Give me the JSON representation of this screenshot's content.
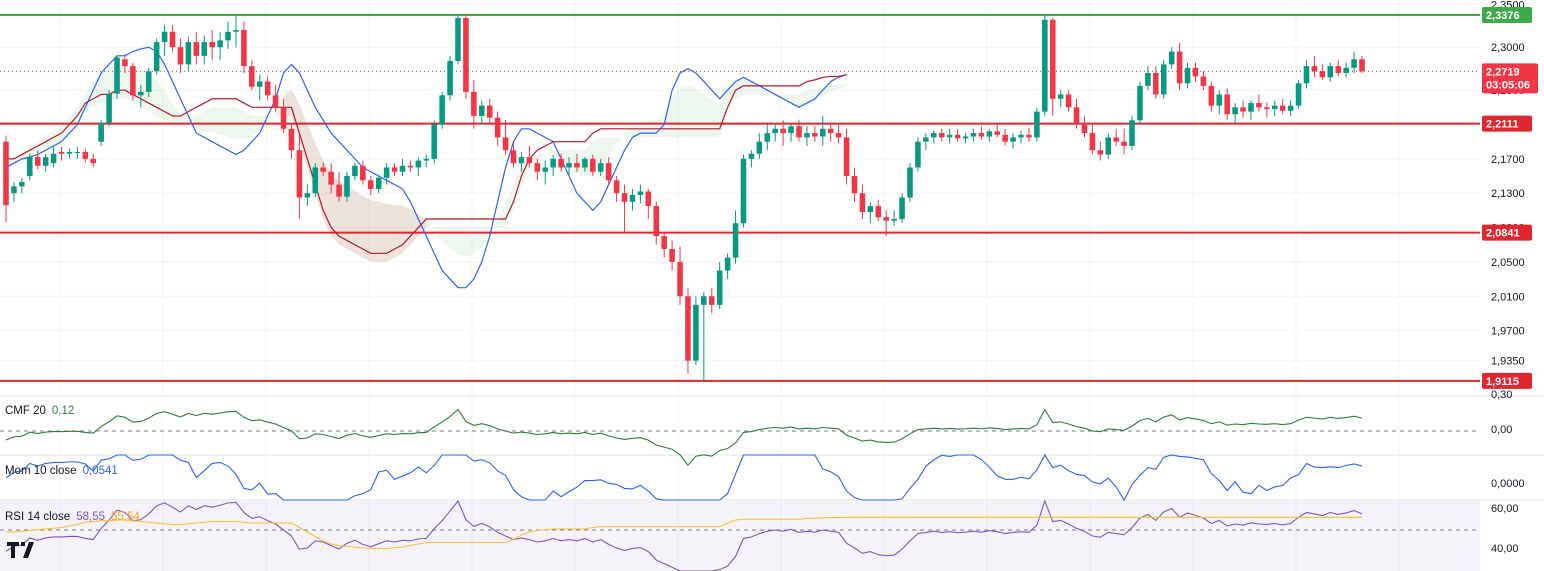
{
  "colors": {
    "up": "#089981",
    "down": "#f23645",
    "tenkan": "#2962ff",
    "kijun": "#b2182b",
    "level_red": "#e0262f",
    "level_green": "#3ea84a",
    "cmf": "#2e7d32",
    "mom": "#2962ff",
    "rsi": "#7e57c2",
    "rsi_ma": "#fbc02d",
    "cloud_green": "rgba(76,175,80,0.10)",
    "cloud_red": "rgba(242,54,69,0.10)"
  },
  "price_axis": {
    "ticks": [
      "2,3500",
      "2,3000",
      "2,2500",
      "2,2100",
      "2,1700",
      "2,1300",
      "2,0900",
      "2,0500",
      "2,0100",
      "1,9700",
      "1,9350"
    ],
    "tick_values": [
      2.35,
      2.3,
      2.25,
      2.21,
      2.17,
      2.13,
      2.09,
      2.05,
      2.01,
      1.97,
      1.935
    ]
  },
  "levels": [
    {
      "label": "2,3376",
      "value": 2.3376,
      "color": "green"
    },
    {
      "label": "2,2111",
      "value": 2.2111,
      "color": "red"
    },
    {
      "label": "2,0841",
      "value": 2.0841,
      "color": "red"
    },
    {
      "label": "1,9115",
      "value": 1.9115,
      "color": "red"
    }
  ],
  "current_price": {
    "label": "2,2719",
    "countdown": "03:05:06",
    "value": 2.2719
  },
  "cmf": {
    "title": "CMF 20",
    "value": "0,12",
    "axis_ticks": [
      "0,30",
      "0,00"
    ]
  },
  "mom": {
    "title": "Mom 10 close",
    "value": "0,0541",
    "axis_ticks": [
      "0,0000"
    ]
  },
  "rsi": {
    "title": "RSI 14 close",
    "value": "58,55",
    "ma_value": "55,54",
    "axis_ticks": [
      "60,00",
      "40,00"
    ]
  },
  "logo": "TV",
  "chart_data": {
    "type": "candlestick",
    "candles_ohlc": [
      [
        2.19,
        2.197,
        2.096,
        2.116
      ],
      [
        2.13,
        2.143,
        2.12,
        2.138
      ],
      [
        2.138,
        2.148,
        2.13,
        2.143
      ],
      [
        2.15,
        2.176,
        2.145,
        2.172
      ],
      [
        2.172,
        2.18,
        2.158,
        2.162
      ],
      [
        2.162,
        2.176,
        2.155,
        2.172
      ],
      [
        2.165,
        2.185,
        2.16,
        2.176
      ],
      [
        2.178,
        2.184,
        2.168,
        2.176
      ],
      [
        2.176,
        2.182,
        2.17,
        2.178
      ],
      [
        2.178,
        2.184,
        2.17,
        2.178
      ],
      [
        2.178,
        2.182,
        2.166,
        2.17
      ],
      [
        2.17,
        2.176,
        2.16,
        2.165
      ],
      [
        2.19,
        2.215,
        2.185,
        2.212
      ],
      [
        2.212,
        2.25,
        2.208,
        2.246
      ],
      [
        2.246,
        2.29,
        2.24,
        2.288
      ],
      [
        2.286,
        2.292,
        2.27,
        2.278
      ],
      [
        2.278,
        2.282,
        2.238,
        2.244
      ],
      [
        2.244,
        2.256,
        2.23,
        2.248
      ],
      [
        2.248,
        2.276,
        2.242,
        2.272
      ],
      [
        2.272,
        2.31,
        2.268,
        2.306
      ],
      [
        2.306,
        2.326,
        2.29,
        2.318
      ],
      [
        2.318,
        2.326,
        2.295,
        2.3
      ],
      [
        2.3,
        2.31,
        2.27,
        2.28
      ],
      [
        2.28,
        2.312,
        2.272,
        2.306
      ],
      [
        2.306,
        2.318,
        2.28,
        2.29
      ],
      [
        2.29,
        2.314,
        2.28,
        2.306
      ],
      [
        2.306,
        2.32,
        2.285,
        2.3
      ],
      [
        2.3,
        2.318,
        2.285,
        2.308
      ],
      [
        2.308,
        2.33,
        2.298,
        2.318
      ],
      [
        2.318,
        2.338,
        2.3,
        2.32
      ],
      [
        2.32,
        2.33,
        2.27,
        2.278
      ],
      [
        2.278,
        2.285,
        2.25,
        2.254
      ],
      [
        2.254,
        2.268,
        2.238,
        2.26
      ],
      [
        2.26,
        2.266,
        2.238,
        2.244
      ],
      [
        2.244,
        2.256,
        2.225,
        2.23
      ],
      [
        2.23,
        2.24,
        2.2,
        2.205
      ],
      [
        2.205,
        2.21,
        2.17,
        2.18
      ],
      [
        2.18,
        2.2,
        2.1,
        2.125
      ],
      [
        2.125,
        2.14,
        2.115,
        2.13
      ],
      [
        2.13,
        2.165,
        2.125,
        2.16
      ],
      [
        2.16,
        2.166,
        2.15,
        2.155
      ],
      [
        2.155,
        2.165,
        2.13,
        2.14
      ],
      [
        2.14,
        2.155,
        2.12,
        2.126
      ],
      [
        2.126,
        2.155,
        2.12,
        2.15
      ],
      [
        2.15,
        2.166,
        2.145,
        2.162
      ],
      [
        2.162,
        2.168,
        2.14,
        2.145
      ],
      [
        2.145,
        2.15,
        2.128,
        2.135
      ],
      [
        2.135,
        2.15,
        2.13,
        2.148
      ],
      [
        2.148,
        2.165,
        2.14,
        2.16
      ],
      [
        2.16,
        2.165,
        2.15,
        2.155
      ],
      [
        2.155,
        2.17,
        2.15,
        2.162
      ],
      [
        2.162,
        2.168,
        2.155,
        2.16
      ],
      [
        2.16,
        2.172,
        2.15,
        2.168
      ],
      [
        2.168,
        2.175,
        2.16,
        2.17
      ],
      [
        2.17,
        2.215,
        2.165,
        2.21
      ],
      [
        2.21,
        2.248,
        2.205,
        2.244
      ],
      [
        2.244,
        2.29,
        2.238,
        2.284
      ],
      [
        2.284,
        2.338,
        2.28,
        2.334
      ],
      [
        2.334,
        2.338,
        2.24,
        2.248
      ],
      [
        2.248,
        2.262,
        2.205,
        2.22
      ],
      [
        2.22,
        2.238,
        2.21,
        2.232
      ],
      [
        2.232,
        2.24,
        2.212,
        2.218
      ],
      [
        2.218,
        2.225,
        2.185,
        2.195
      ],
      [
        2.195,
        2.215,
        2.175,
        2.18
      ],
      [
        2.18,
        2.19,
        2.16,
        2.165
      ],
      [
        2.165,
        2.178,
        2.155,
        2.172
      ],
      [
        2.172,
        2.185,
        2.16,
        2.165
      ],
      [
        2.165,
        2.17,
        2.145,
        2.155
      ],
      [
        2.155,
        2.168,
        2.14,
        2.16
      ],
      [
        2.16,
        2.175,
        2.15,
        2.17
      ],
      [
        2.17,
        2.176,
        2.155,
        2.16
      ],
      [
        2.16,
        2.172,
        2.15,
        2.165
      ],
      [
        2.165,
        2.176,
        2.155,
        2.16
      ],
      [
        2.16,
        2.172,
        2.155,
        2.17
      ],
      [
        2.17,
        2.175,
        2.15,
        2.155
      ],
      [
        2.155,
        2.17,
        2.15,
        2.165
      ],
      [
        2.165,
        2.172,
        2.14,
        2.145
      ],
      [
        2.145,
        2.15,
        2.12,
        2.13
      ],
      [
        2.13,
        2.14,
        2.085,
        2.12
      ],
      [
        2.12,
        2.135,
        2.11,
        2.128
      ],
      [
        2.128,
        2.14,
        2.118,
        2.132
      ],
      [
        2.132,
        2.135,
        2.1,
        2.115
      ],
      [
        2.115,
        2.12,
        2.07,
        2.08
      ],
      [
        2.08,
        2.085,
        2.055,
        2.065
      ],
      [
        2.065,
        2.075,
        2.04,
        2.05
      ],
      [
        2.05,
        2.068,
        2.0,
        2.01
      ],
      [
        2.01,
        2.02,
        1.92,
        1.935
      ],
      [
        1.935,
        2.01,
        1.93,
        2.0
      ],
      [
        2.0,
        2.015,
        1.91,
        2.01
      ],
      [
        2.01,
        2.02,
        1.99,
        2.0
      ],
      [
        2.0,
        2.05,
        1.995,
        2.04
      ],
      [
        2.04,
        2.06,
        2.03,
        2.055
      ],
      [
        2.055,
        2.11,
        2.048,
        2.095
      ],
      [
        2.095,
        2.175,
        2.09,
        2.17
      ],
      [
        2.17,
        2.18,
        2.16,
        2.176
      ],
      [
        2.176,
        2.2,
        2.17,
        2.19
      ],
      [
        2.19,
        2.21,
        2.18,
        2.2
      ],
      [
        2.2,
        2.212,
        2.19,
        2.205
      ],
      [
        2.205,
        2.215,
        2.185,
        2.2
      ],
      [
        2.2,
        2.212,
        2.19,
        2.208
      ],
      [
        2.208,
        2.215,
        2.19,
        2.195
      ],
      [
        2.195,
        2.208,
        2.185,
        2.2
      ],
      [
        2.2,
        2.208,
        2.19,
        2.196
      ],
      [
        2.196,
        2.22,
        2.185,
        2.205
      ],
      [
        2.205,
        2.21,
        2.19,
        2.2
      ],
      [
        2.2,
        2.212,
        2.188,
        2.195
      ],
      [
        2.195,
        2.205,
        2.14,
        2.15
      ],
      [
        2.15,
        2.16,
        2.12,
        2.13
      ],
      [
        2.13,
        2.14,
        2.1,
        2.108
      ],
      [
        2.108,
        2.12,
        2.095,
        2.115
      ],
      [
        2.115,
        2.122,
        2.098,
        2.102
      ],
      [
        2.102,
        2.11,
        2.08,
        2.098
      ],
      [
        2.098,
        2.11,
        2.092,
        2.1
      ],
      [
        2.1,
        2.13,
        2.095,
        2.125
      ],
      [
        2.125,
        2.165,
        2.12,
        2.16
      ],
      [
        2.16,
        2.195,
        2.155,
        2.19
      ],
      [
        2.19,
        2.2,
        2.18,
        2.195
      ],
      [
        2.195,
        2.203,
        2.188,
        2.2
      ],
      [
        2.2,
        2.205,
        2.19,
        2.195
      ],
      [
        2.195,
        2.205,
        2.188,
        2.198
      ],
      [
        2.198,
        2.205,
        2.19,
        2.194
      ],
      [
        2.194,
        2.2,
        2.188,
        2.196
      ],
      [
        2.196,
        2.205,
        2.19,
        2.2
      ],
      [
        2.2,
        2.208,
        2.192,
        2.196
      ],
      [
        2.196,
        2.205,
        2.19,
        2.202
      ],
      [
        2.202,
        2.21,
        2.195,
        2.198
      ],
      [
        2.198,
        2.205,
        2.185,
        2.19
      ],
      [
        2.19,
        2.2,
        2.182,
        2.195
      ],
      [
        2.195,
        2.203,
        2.188,
        2.198
      ],
      [
        2.198,
        2.206,
        2.19,
        2.195
      ],
      [
        2.195,
        2.23,
        2.19,
        2.225
      ],
      [
        2.225,
        2.338,
        2.22,
        2.332
      ],
      [
        2.332,
        2.334,
        2.22,
        2.24
      ],
      [
        2.24,
        2.25,
        2.23,
        2.245
      ],
      [
        2.245,
        2.25,
        2.225,
        2.23
      ],
      [
        2.23,
        2.24,
        2.205,
        2.212
      ],
      [
        2.212,
        2.22,
        2.195,
        2.2
      ],
      [
        2.2,
        2.21,
        2.175,
        2.18
      ],
      [
        2.18,
        2.19,
        2.168,
        2.175
      ],
      [
        2.175,
        2.2,
        2.17,
        2.195
      ],
      [
        2.195,
        2.205,
        2.185,
        2.19
      ],
      [
        2.19,
        2.205,
        2.175,
        2.185
      ],
      [
        2.185,
        2.22,
        2.18,
        2.215
      ],
      [
        2.215,
        2.26,
        2.21,
        2.255
      ],
      [
        2.255,
        2.278,
        2.25,
        2.27
      ],
      [
        2.27,
        2.278,
        2.24,
        2.245
      ],
      [
        2.245,
        2.285,
        2.24,
        2.28
      ],
      [
        2.28,
        2.3,
        2.275,
        2.295
      ],
      [
        2.295,
        2.305,
        2.25,
        2.258
      ],
      [
        2.258,
        2.282,
        2.252,
        2.276
      ],
      [
        2.276,
        2.282,
        2.26,
        2.266
      ],
      [
        2.266,
        2.272,
        2.25,
        2.255
      ],
      [
        2.255,
        2.26,
        2.225,
        2.232
      ],
      [
        2.232,
        2.25,
        2.222,
        2.245
      ],
      [
        2.245,
        2.252,
        2.215,
        2.222
      ],
      [
        2.222,
        2.235,
        2.212,
        2.23
      ],
      [
        2.23,
        2.238,
        2.218,
        2.225
      ],
      [
        2.225,
        2.238,
        2.215,
        2.235
      ],
      [
        2.235,
        2.245,
        2.225,
        2.23
      ],
      [
        2.23,
        2.236,
        2.218,
        2.228
      ],
      [
        2.228,
        2.238,
        2.22,
        2.232
      ],
      [
        2.232,
        2.24,
        2.222,
        2.226
      ],
      [
        2.226,
        2.238,
        2.22,
        2.232
      ],
      [
        2.232,
        2.262,
        2.228,
        2.258
      ],
      [
        2.258,
        2.285,
        2.252,
        2.278
      ],
      [
        2.278,
        2.29,
        2.265,
        2.272
      ],
      [
        2.272,
        2.28,
        2.262,
        2.265
      ],
      [
        2.265,
        2.282,
        2.26,
        2.278
      ],
      [
        2.278,
        2.285,
        2.266,
        2.27
      ],
      [
        2.27,
        2.282,
        2.265,
        2.276
      ],
      [
        2.276,
        2.295,
        2.27,
        2.286
      ],
      [
        2.286,
        2.29,
        2.27,
        2.272
      ]
    ],
    "tenkan": [
      2.16,
      2.165,
      2.17,
      2.172,
      2.175,
      2.18,
      2.185,
      2.19,
      2.2,
      2.21,
      2.23,
      2.25,
      2.27,
      2.28,
      2.29,
      2.29,
      2.295,
      2.298,
      2.3,
      2.295,
      2.28,
      2.26,
      2.24,
      2.22,
      2.2,
      2.195,
      2.19,
      2.185,
      2.18,
      2.175,
      2.18,
      2.19,
      2.2,
      2.22,
      2.24,
      2.27,
      2.28,
      2.27,
      2.25,
      2.23,
      2.215,
      2.2,
      2.19,
      2.18,
      2.17,
      2.16,
      2.155,
      2.15,
      2.145,
      2.14,
      2.135,
      2.12,
      2.1,
      2.08,
      2.06,
      2.04,
      2.03,
      2.02,
      2.02,
      2.03,
      2.05,
      2.08,
      2.12,
      2.16,
      2.19,
      2.205,
      2.205,
      2.2,
      2.195,
      2.19,
      2.17,
      2.15,
      2.13,
      2.12,
      2.11,
      2.12,
      2.14,
      2.16,
      2.18,
      2.195,
      2.2,
      2.2,
      2.2,
      2.21,
      2.25,
      2.27,
      2.275,
      2.27,
      2.26,
      2.25,
      2.24,
      2.25,
      2.26,
      2.265,
      2.26,
      2.255,
      2.25,
      2.245,
      2.24,
      2.235,
      2.23,
      2.235,
      2.24,
      2.25,
      2.26,
      2.265,
      2.268
    ],
    "kijun": [
      2.17,
      2.17,
      2.175,
      2.18,
      2.185,
      2.19,
      2.195,
      2.2,
      2.21,
      2.22,
      2.235,
      2.24,
      2.245,
      2.245,
      2.25,
      2.25,
      2.245,
      2.24,
      2.235,
      2.23,
      2.225,
      2.22,
      2.22,
      2.225,
      2.23,
      2.235,
      2.24,
      2.24,
      2.24,
      2.24,
      2.235,
      2.23,
      2.23,
      2.23,
      2.23,
      2.23,
      2.23,
      2.2,
      2.17,
      2.14,
      2.11,
      2.09,
      2.08,
      2.075,
      2.07,
      2.065,
      2.06,
      2.06,
      2.06,
      2.065,
      2.07,
      2.08,
      2.09,
      2.1,
      2.1,
      2.1,
      2.1,
      2.1,
      2.1,
      2.1,
      2.1,
      2.1,
      2.1,
      2.1,
      2.12,
      2.15,
      2.17,
      2.18,
      2.185,
      2.19,
      2.19,
      2.19,
      2.19,
      2.19,
      2.2,
      2.205,
      2.205,
      2.205,
      2.205,
      2.205,
      2.205,
      2.205,
      2.205,
      2.205,
      2.205,
      2.205,
      2.205,
      2.205,
      2.205,
      2.205,
      2.205,
      2.23,
      2.25,
      2.255,
      2.255,
      2.255,
      2.255,
      2.255,
      2.255,
      2.255,
      2.255,
      2.26,
      2.262,
      2.265,
      2.266,
      2.266,
      2.268
    ],
    "rsi_ma_note": "",
    "ylim": [
      1.895,
      2.355
    ]
  }
}
